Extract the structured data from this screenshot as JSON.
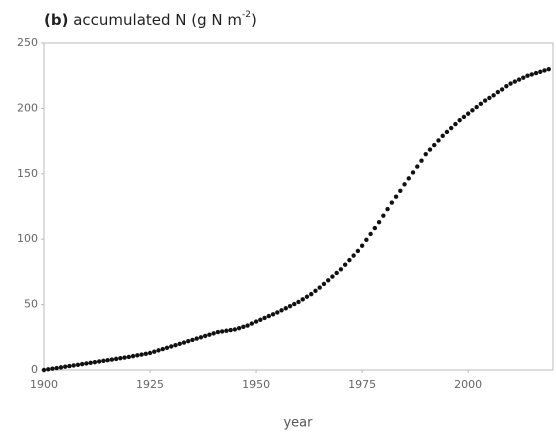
{
  "chart_data": {
    "type": "scatter",
    "panel_label": "(b)",
    "title": [
      "accumulated N (g N m",
      "-2",
      ")"
    ],
    "xlabel": "year",
    "color": "#111111",
    "x": [
      1900,
      1901,
      1902,
      1903,
      1904,
      1905,
      1906,
      1907,
      1908,
      1909,
      1910,
      1911,
      1912,
      1913,
      1914,
      1915,
      1916,
      1917,
      1918,
      1919,
      1920,
      1921,
      1922,
      1923,
      1924,
      1925,
      1926,
      1927,
      1928,
      1929,
      1930,
      1931,
      1932,
      1933,
      1934,
      1935,
      1936,
      1937,
      1938,
      1939,
      1940,
      1941,
      1942,
      1943,
      1944,
      1945,
      1946,
      1947,
      1948,
      1949,
      1950,
      1951,
      1952,
      1953,
      1954,
      1955,
      1956,
      1957,
      1958,
      1959,
      1960,
      1961,
      1962,
      1963,
      1964,
      1965,
      1966,
      1967,
      1968,
      1969,
      1970,
      1971,
      1972,
      1973,
      1974,
      1975,
      1976,
      1977,
      1978,
      1979,
      1980,
      1981,
      1982,
      1983,
      1984,
      1985,
      1986,
      1987,
      1988,
      1989,
      1990,
      1991,
      1992,
      1993,
      1994,
      1995,
      1996,
      1997,
      1998,
      1999,
      2000,
      2001,
      2002,
      2003,
      2004,
      2005,
      2006,
      2007,
      2008,
      2009,
      2010,
      2011,
      2012,
      2013,
      2014,
      2015,
      2016,
      2017,
      2018,
      2019
    ],
    "values": [
      0,
      0.5,
      1,
      1.5,
      2,
      2.5,
      3,
      3.5,
      4,
      4.5,
      5,
      5.5,
      6,
      6.5,
      7,
      7.5,
      8,
      8.5,
      9,
      9.5,
      10,
      10.6,
      11.2,
      11.8,
      12.4,
      13,
      14,
      15,
      16,
      17,
      18,
      19,
      20,
      21,
      22,
      23,
      24,
      25,
      26,
      27,
      28,
      29,
      29.5,
      30,
      30.5,
      31,
      32,
      33,
      34,
      35.5,
      37,
      38.4,
      39.8,
      41.2,
      42.6,
      44,
      45.6,
      47.2,
      48.8,
      50.4,
      52,
      54,
      56,
      58,
      60.5,
      63,
      65.8,
      68.6,
      71.4,
      74.2,
      77,
      80.5,
      84,
      87.5,
      91,
      95,
      99.5,
      104,
      108.5,
      113,
      118,
      123,
      128,
      132.5,
      137,
      142,
      146.5,
      151,
      155.5,
      160,
      165,
      168.5,
      172,
      175.5,
      179,
      182,
      185,
      188,
      191,
      193.5,
      196,
      198.5,
      201,
      203.5,
      206,
      208,
      210,
      212.5,
      214.5,
      217,
      219,
      220.5,
      222,
      223.5,
      225,
      226,
      227,
      228,
      229,
      230
    ],
    "xlim": [
      1900,
      2020
    ],
    "xticks": [
      1900,
      1925,
      1950,
      1975,
      2000
    ],
    "ylim": [
      0,
      250
    ],
    "yticks": [
      0,
      50,
      100,
      150,
      200,
      250
    ],
    "grid": false
  }
}
